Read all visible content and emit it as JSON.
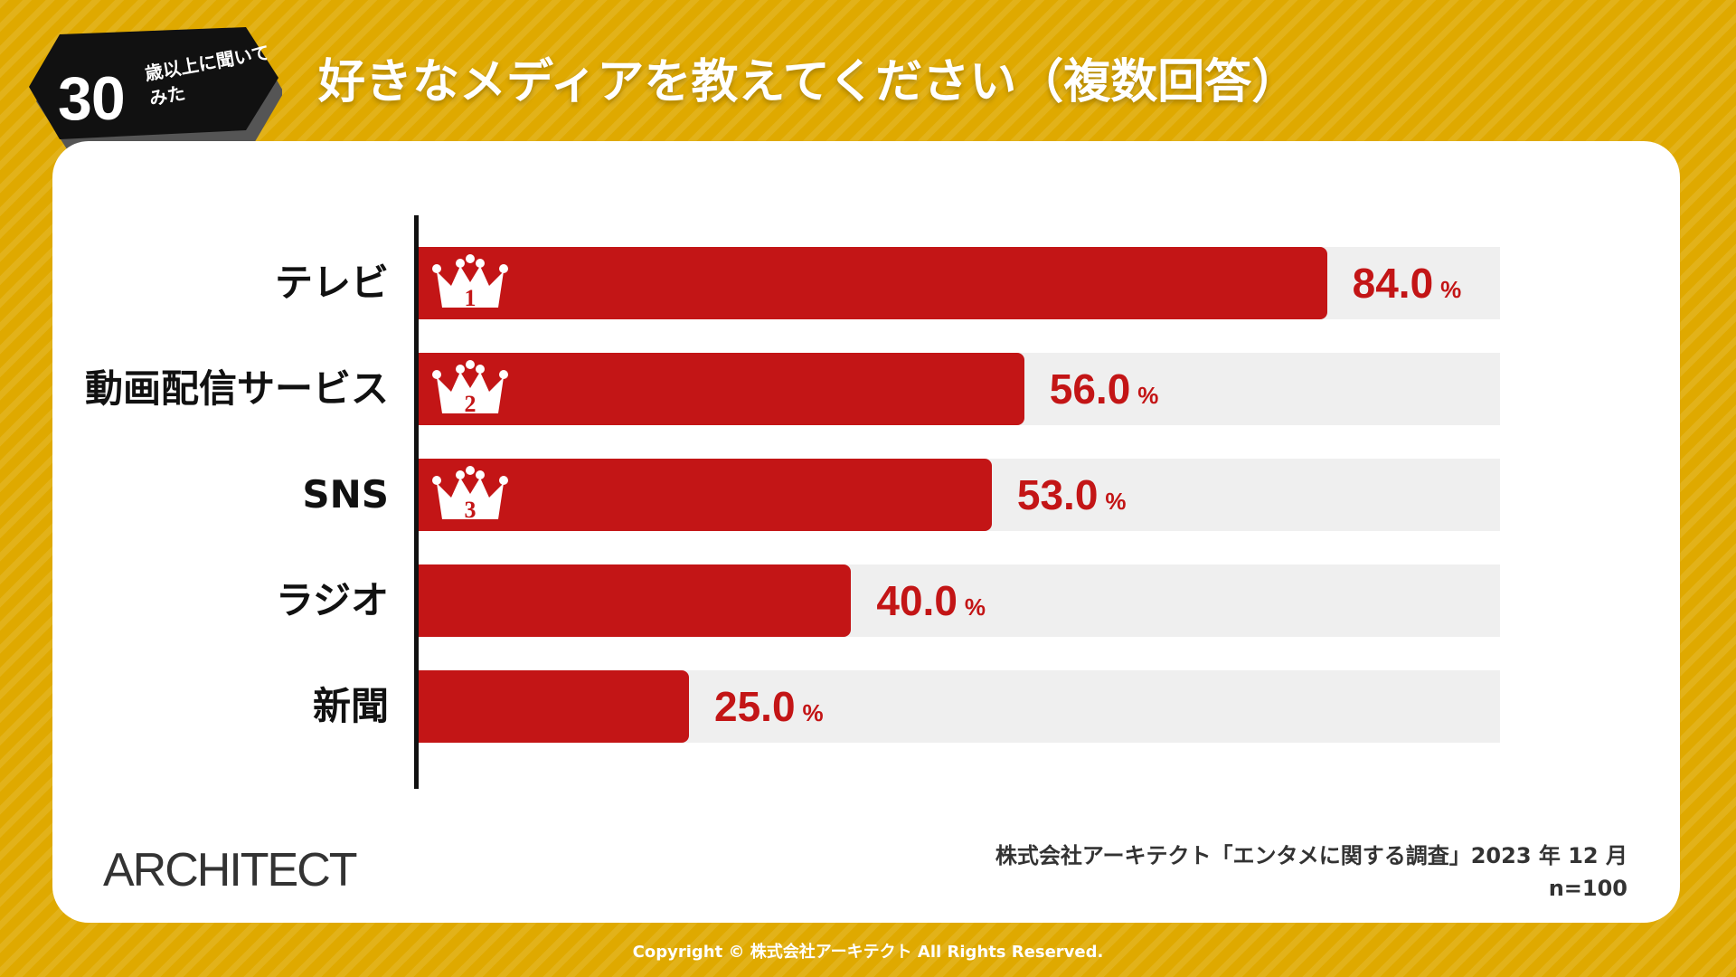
{
  "header": {
    "badge_number": "30",
    "badge_text": "歳以上に聞いてみた",
    "title": "好きなメディアを教えてください（複数回答）"
  },
  "colors": {
    "background": "#dfa900",
    "bar": "#c31516",
    "track": "#efefef"
  },
  "chart_data": {
    "type": "bar",
    "orientation": "horizontal",
    "title": "好きなメディアを教えてください（複数回答）",
    "categories": [
      "テレビ",
      "動画配信サービス",
      "SNS",
      "ラジオ",
      "新聞"
    ],
    "values": [
      84.0,
      56.0,
      53.0,
      40.0,
      25.0
    ],
    "value_labels": [
      "84.0",
      "56.0",
      "53.0",
      "40.0",
      "25.0"
    ],
    "unit": "%",
    "xlim": [
      0,
      100
    ],
    "ranks": [
      "1",
      "2",
      "3"
    ],
    "rank_icon": "crown-icon"
  },
  "footer": {
    "logo": "ARCHITECT",
    "source": "株式会社アーキテクト「エンタメに関する調査」2023 年 12 月",
    "sample": "n=100",
    "copyright": "Copyright © 株式会社アーキテクト All Rights Reserved."
  }
}
